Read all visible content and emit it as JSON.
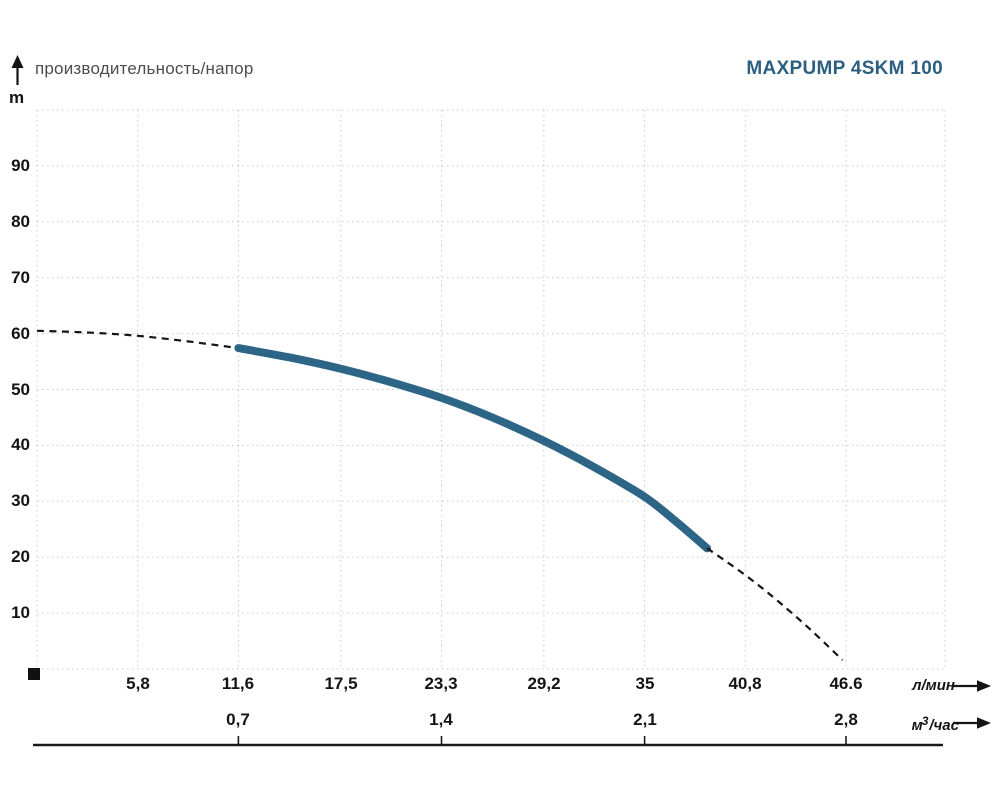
{
  "chart": {
    "title": "производительность/напор",
    "model": "MAXPUMP 4SKM 100",
    "y_axis": {
      "label": "m",
      "tick_labels": [
        "90",
        "80",
        "70",
        "60",
        "50",
        "40",
        "30",
        "20",
        "10"
      ],
      "tick_values": [
        90,
        80,
        70,
        60,
        50,
        40,
        30,
        20,
        10
      ]
    },
    "x_axis_primary": {
      "label": "л/мин",
      "tick_labels": [
        "5,8",
        "11,6",
        "17,5",
        "23,3",
        "29,2",
        "35",
        "40,8",
        "46.6"
      ],
      "tick_values": [
        5.8,
        11.6,
        17.5,
        23.3,
        29.2,
        35,
        40.8,
        46.6
      ]
    },
    "x_axis_secondary": {
      "label": "м³/час",
      "label_base": "м",
      "label_sup": "3",
      "label_rest": "/час",
      "tick_labels": [
        "0,7",
        "1,4",
        "2,1",
        "2,8"
      ],
      "tick_values": [
        0.7,
        1.4,
        2.1,
        2.8
      ],
      "positions_l_min": [
        11.6,
        23.3,
        35,
        46.6
      ]
    }
  },
  "chart_data": {
    "type": "line",
    "title": "производительность/напор",
    "model": "MAXPUMP 4SKM 100",
    "ylabel": "m",
    "xlabel_primary": "л/мин",
    "xlabel_secondary": "м³/час",
    "ylim": [
      0,
      100
    ],
    "xlim_l_min": [
      0,
      52.3
    ],
    "grid": true,
    "y_ticks": [
      10,
      20,
      30,
      40,
      50,
      60,
      70,
      80,
      90
    ],
    "x_ticks_l_min": [
      5.8,
      11.6,
      17.5,
      23.3,
      29.2,
      35,
      40.8,
      46.6
    ],
    "x_ticks_m3_h": [
      0.7,
      1.4,
      2.1,
      2.8
    ],
    "series": [
      {
        "name": "head_curve_extrapolated_low",
        "style": "dashed",
        "points_l_min_m": [
          [
            0,
            60.5
          ],
          [
            2.9,
            60.2
          ],
          [
            5.8,
            59.6
          ],
          [
            8.7,
            58.6
          ],
          [
            11.6,
            57.4
          ]
        ]
      },
      {
        "name": "head_curve_operating_range",
        "style": "solid",
        "points_l_min_m": [
          [
            11.6,
            57.4
          ],
          [
            14.6,
            55.7
          ],
          [
            17.5,
            53.7
          ],
          [
            20.4,
            51.3
          ],
          [
            23.3,
            48.5
          ],
          [
            26.3,
            44.9
          ],
          [
            29.2,
            40.8
          ],
          [
            32.1,
            36.1
          ],
          [
            35.0,
            30.8
          ],
          [
            36.8,
            26.4
          ],
          [
            38.6,
            21.6
          ]
        ]
      },
      {
        "name": "head_curve_extrapolated_high",
        "style": "dashed",
        "points_l_min_m": [
          [
            38.6,
            21.6
          ],
          [
            40.8,
            16.8
          ],
          [
            42.7,
            12.1
          ],
          [
            44.6,
            6.9
          ],
          [
            46.4,
            1.6
          ]
        ]
      }
    ]
  },
  "colors": {
    "curve_solid": "#2d6587",
    "curve_dashed": "#161616",
    "grid": "#c9c9c9",
    "axis": "#1a1a1a",
    "title_gray": "#4d4d4d",
    "model_blue": "#2c5f80",
    "text": "#141414"
  }
}
